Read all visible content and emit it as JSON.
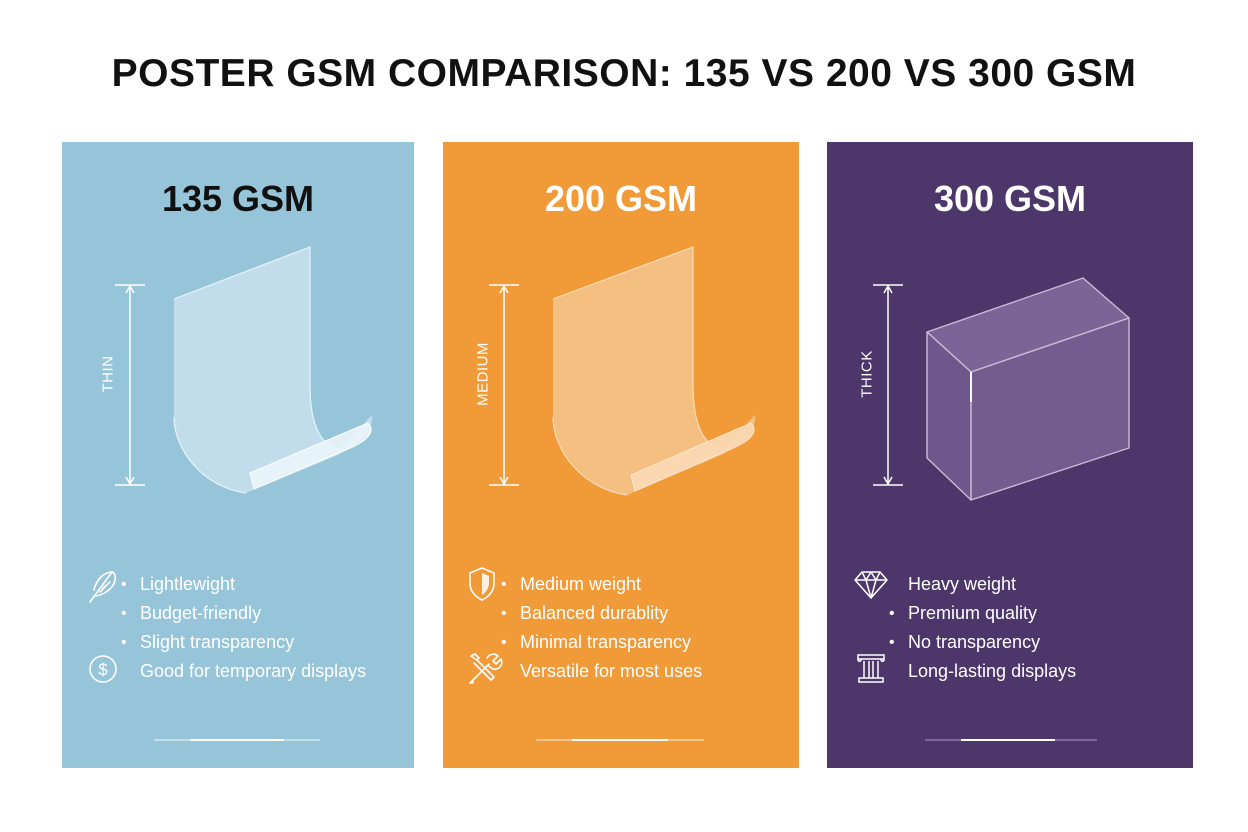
{
  "title": "POSTER GSM COMPARISON: 135 VS 200 VS 300 GSM",
  "cards": [
    {
      "heading": "135 GSM",
      "thickness_label": "THIN",
      "color": "#96c4d8",
      "illustration": "thin-curled-sheet",
      "features": [
        "Lightlewight",
        "Budget-friendly",
        "Slight transparency",
        "Good for temporary displays"
      ],
      "icons": [
        "feather-icon",
        "dollar-coin-icon"
      ]
    },
    {
      "heading": "200 GSM",
      "thickness_label": "MEDIUM",
      "color": "#f09a38",
      "illustration": "medium-curled-sheet",
      "features": [
        "Medium weight",
        "Balanced durablity",
        "Minimal transparency",
        "Versatile for most uses"
      ],
      "icons": [
        "shield-icon",
        "tools-icon"
      ]
    },
    {
      "heading": "300 GSM",
      "thickness_label": "THICK",
      "color": "#4d3669",
      "illustration": "thick-board-block",
      "features": [
        "Heavy weight",
        "Premium quality",
        "No transparency",
        "Long-lasting displays"
      ],
      "icons": [
        "diamond-icon",
        "pillar-icon"
      ]
    }
  ]
}
